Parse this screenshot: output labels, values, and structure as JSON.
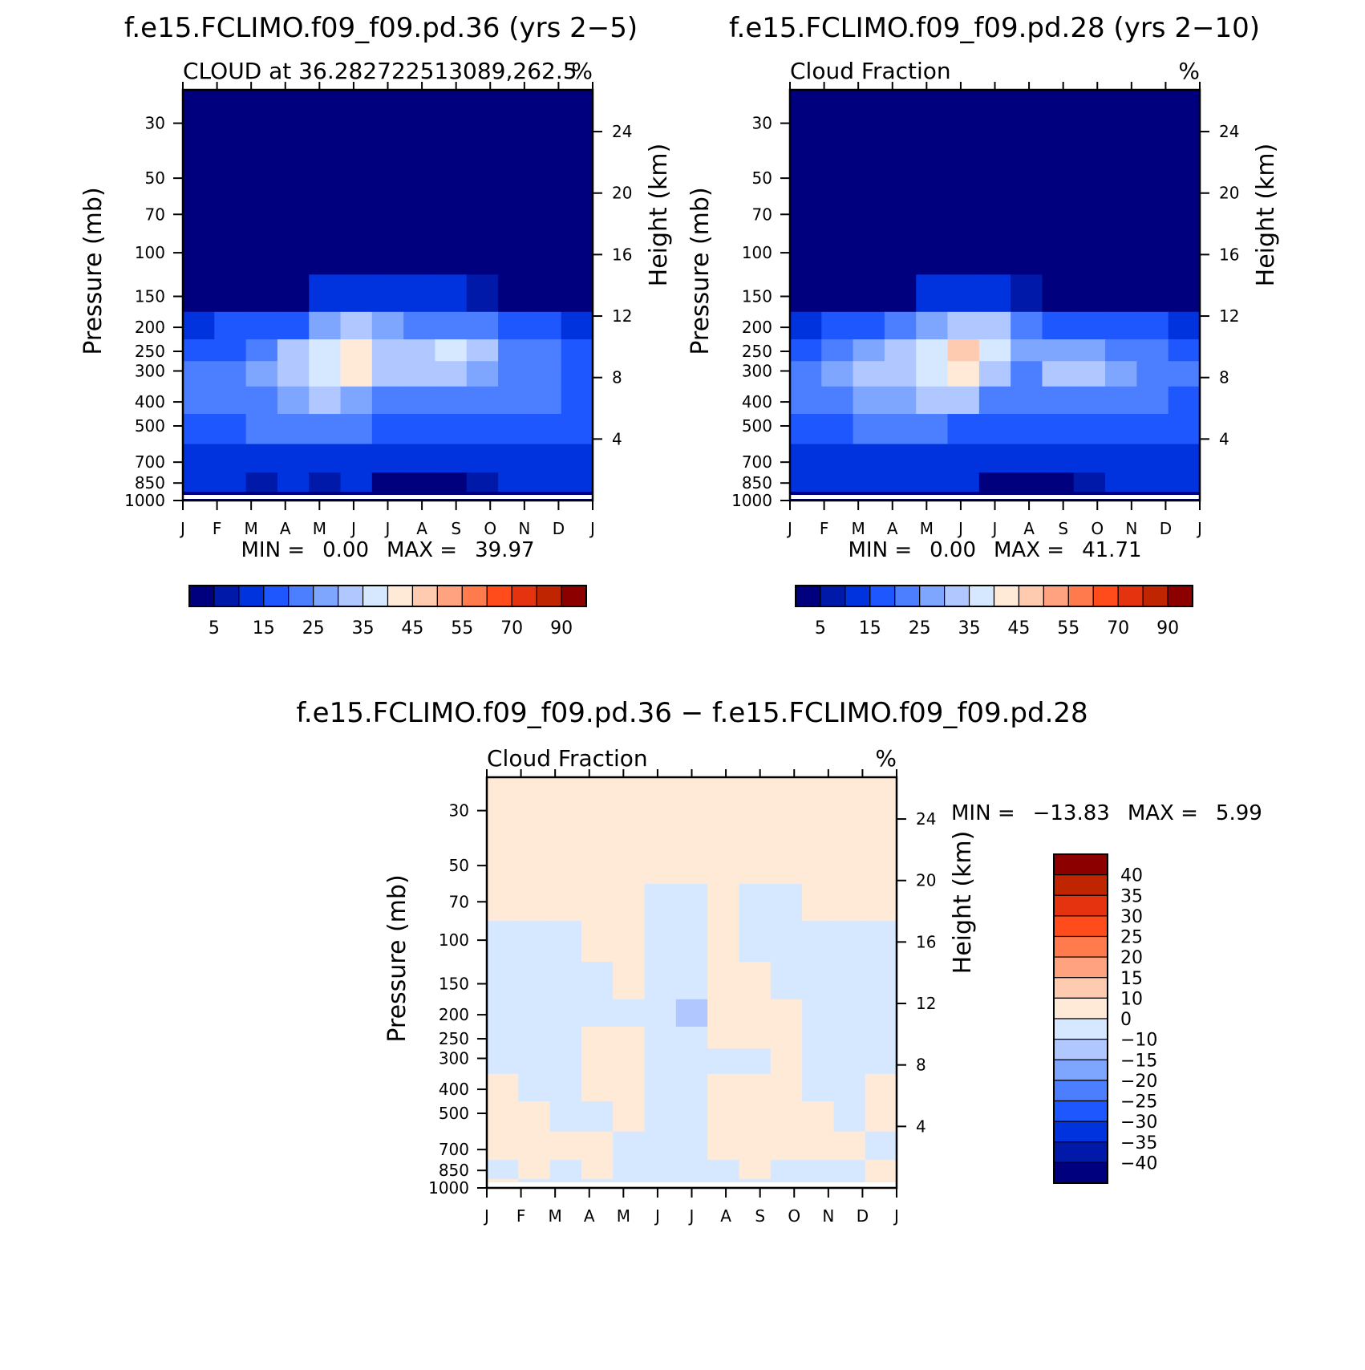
{
  "figure": {
    "bg_color": "#ffffff",
    "line_color": "#000000"
  },
  "palettes": {
    "cloud": [
      "#00007f",
      "#0019a8",
      "#0033de",
      "#1f57ff",
      "#4c7fff",
      "#7fa6ff",
      "#b0c8ff",
      "#d6e8ff",
      "#ffead8",
      "#ffcbb0",
      "#ffa280",
      "#ff7a4c",
      "#ff4c1a",
      "#e5330f",
      "#bf2500",
      "#8c0000"
    ],
    "diff": [
      "#00007f",
      "#0019a8",
      "#0033de",
      "#1f57ff",
      "#4c7fff",
      "#7fa6ff",
      "#b0c8ff",
      "#d6e8ff",
      "#ffead8",
      "#ffcbb0",
      "#ffa280",
      "#ff7a4c",
      "#ff4c1a",
      "#e5330f",
      "#bf2500",
      "#8c0000"
    ]
  },
  "chart_data": [
    {
      "type": "heatmap",
      "title": "f.e15.FCLIMO.f09_f09.pd.36 (yrs 2−5)",
      "subtitle_left": "CLOUD at 36.282722513089,262.5",
      "subtitle_right": "%",
      "ylabel": "Pressure (mb)",
      "y2label": "Height (km)",
      "x_ticks": [
        "J",
        "F",
        "M",
        "A",
        "M",
        "J",
        "J",
        "A",
        "S",
        "O",
        "N",
        "D",
        "J"
      ],
      "y_ticks": [
        30,
        50,
        70,
        100,
        150,
        200,
        250,
        300,
        400,
        500,
        700,
        850,
        1000
      ],
      "y2_ticks": [
        24,
        20,
        16,
        12,
        8,
        4
      ],
      "stats": {
        "min_label": "MIN =",
        "min": "0.00",
        "max_label": "MAX =",
        "max": "39.97"
      },
      "colorbar": {
        "labels": [
          "5",
          "15",
          "25",
          "35",
          "45",
          "55",
          "70",
          "90"
        ]
      },
      "color_levels": [
        0.8,
        1.0,
        1.8,
        2.5,
        3.5,
        4.2,
        5.2,
        6.2,
        7.5,
        8.5,
        10,
        12,
        15
      ],
      "field": [
        [
          0.5,
          0.5,
          0.5,
          0.5,
          0.5,
          0.5,
          0.5,
          0.5,
          0.5,
          0.5,
          0.5,
          0.5,
          0.5
        ],
        [
          0.5,
          0.5,
          0.5,
          0.5,
          0.5,
          0.5,
          0.5,
          0.5,
          0.5,
          0.5,
          0.5,
          0.5,
          0.5
        ],
        [
          0.5,
          0.5,
          0.5,
          0.5,
          0.5,
          0.5,
          0.5,
          0.5,
          0.5,
          0.5,
          0.5,
          0.5,
          0.5
        ],
        [
          0.5,
          0.5,
          0.5,
          0.5,
          0.5,
          0.5,
          0.5,
          0.5,
          0.5,
          0.5,
          0.5,
          0.5,
          0.5
        ],
        [
          0.5,
          0.5,
          0.5,
          0.5,
          1.2,
          1.5,
          1.2,
          1.0,
          1.1,
          0.9,
          0.6,
          0.5,
          0.5
        ],
        [
          1.2,
          1.8,
          2.0,
          2.4,
          3.6,
          4.5,
          3.5,
          2.6,
          3.0,
          2.6,
          2.0,
          1.8,
          1.2
        ],
        [
          2.0,
          2.4,
          3.0,
          4.4,
          5.8,
          7.0,
          5.0,
          4.6,
          5.4,
          4.2,
          3.0,
          2.5,
          2.0
        ],
        [
          2.8,
          3.0,
          3.8,
          4.8,
          5.6,
          6.8,
          4.8,
          4.4,
          5.0,
          4.0,
          3.2,
          2.8,
          2.4
        ],
        [
          2.6,
          2.8,
          3.2,
          4.0,
          4.6,
          4.0,
          3.4,
          3.2,
          3.2,
          2.8,
          2.6,
          2.6,
          2.2
        ],
        [
          2.2,
          2.2,
          2.5,
          2.8,
          2.8,
          2.6,
          2.2,
          2.2,
          2.0,
          1.9,
          2.1,
          2.0,
          2.0
        ],
        [
          1.6,
          1.6,
          1.6,
          1.6,
          1.6,
          1.5,
          1.2,
          1.3,
          1.5,
          1.6,
          1.6,
          1.6,
          1.6
        ],
        [
          1.4,
          1.2,
          0.9,
          1.1,
          0.9,
          1.1,
          0.5,
          0.5,
          0.5,
          0.9,
          1.1,
          1.3,
          1.4
        ],
        [
          0.6,
          0.6,
          0.6,
          0.6,
          0.6,
          0.6,
          0.5,
          0.5,
          0.5,
          0.6,
          0.6,
          0.6,
          0.6
        ]
      ]
    },
    {
      "type": "heatmap",
      "title": "f.e15.FCLIMO.f09_f09.pd.28 (yrs 2−10)",
      "subtitle_left": "Cloud Fraction",
      "subtitle_right": "%",
      "ylabel": "Pressure (mb)",
      "y2label": "Height (km)",
      "x_ticks": [
        "J",
        "F",
        "M",
        "A",
        "M",
        "J",
        "J",
        "A",
        "S",
        "O",
        "N",
        "D",
        "J"
      ],
      "y_ticks": [
        30,
        50,
        70,
        100,
        150,
        200,
        250,
        300,
        400,
        500,
        700,
        850,
        1000
      ],
      "y2_ticks": [
        24,
        20,
        16,
        12,
        8,
        4
      ],
      "stats": {
        "min_label": "MIN =",
        "min": "0.00",
        "max_label": "MAX =",
        "max": "41.71"
      },
      "colorbar": {
        "labels": [
          "5",
          "15",
          "25",
          "35",
          "45",
          "55",
          "70",
          "90"
        ]
      },
      "color_levels": [
        0.8,
        1.0,
        1.8,
        2.5,
        3.5,
        4.2,
        5.2,
        6.2,
        7.5,
        8.5,
        10,
        12,
        15
      ],
      "field": [
        [
          0.5,
          0.5,
          0.5,
          0.5,
          0.5,
          0.5,
          0.5,
          0.5,
          0.5,
          0.5,
          0.5,
          0.5,
          0.5
        ],
        [
          0.5,
          0.5,
          0.5,
          0.5,
          0.5,
          0.5,
          0.5,
          0.5,
          0.5,
          0.5,
          0.5,
          0.5,
          0.5
        ],
        [
          0.5,
          0.5,
          0.5,
          0.5,
          0.5,
          0.5,
          0.5,
          0.5,
          0.5,
          0.5,
          0.5,
          0.5,
          0.5
        ],
        [
          0.5,
          0.5,
          0.5,
          0.5,
          0.5,
          0.5,
          0.5,
          0.5,
          0.5,
          0.5,
          0.5,
          0.5,
          0.5
        ],
        [
          0.5,
          0.5,
          0.6,
          0.6,
          1.2,
          1.4,
          1.5,
          0.8,
          0.6,
          0.6,
          0.5,
          0.5,
          0.5
        ],
        [
          1.4,
          2.0,
          2.2,
          2.6,
          3.8,
          4.8,
          4.2,
          2.6,
          2.2,
          2.0,
          1.8,
          1.8,
          1.4
        ],
        [
          2.2,
          3.0,
          3.8,
          4.8,
          5.6,
          7.8,
          5.6,
          3.6,
          4.0,
          3.8,
          3.0,
          2.6,
          2.2
        ],
        [
          2.8,
          3.6,
          4.8,
          5.0,
          5.4,
          6.6,
          4.6,
          3.4,
          4.2,
          4.2,
          3.6,
          2.8,
          2.6
        ],
        [
          2.6,
          3.4,
          3.6,
          4.0,
          4.4,
          4.2,
          2.6,
          2.8,
          3.4,
          3.2,
          2.8,
          2.6,
          2.4
        ],
        [
          2.2,
          2.2,
          2.6,
          2.8,
          2.8,
          2.4,
          2.0,
          2.2,
          2.2,
          2.1,
          2.0,
          2.0,
          2.0
        ],
        [
          1.6,
          1.5,
          1.6,
          1.6,
          1.6,
          1.6,
          1.2,
          1.2,
          1.3,
          1.4,
          1.5,
          1.6,
          1.6
        ],
        [
          1.3,
          1.2,
          1.2,
          1.1,
          1.2,
          1.1,
          0.5,
          0.5,
          0.6,
          0.8,
          1.1,
          1.3,
          1.3
        ],
        [
          0.6,
          0.6,
          0.6,
          0.6,
          0.6,
          0.6,
          0.5,
          0.5,
          0.5,
          0.6,
          0.6,
          0.6,
          0.6
        ]
      ]
    },
    {
      "type": "heatmap",
      "title": "f.e15.FCLIMO.f09_f09.pd.36 − f.e15.FCLIMO.f09_f09.pd.28",
      "subtitle_left": "Cloud Fraction",
      "subtitle_right": "%",
      "ylabel": "Pressure (mb)",
      "y2label": "Height (km)",
      "x_ticks": [
        "J",
        "F",
        "M",
        "A",
        "M",
        "J",
        "J",
        "A",
        "S",
        "O",
        "N",
        "D",
        "J"
      ],
      "y_ticks": [
        30,
        50,
        70,
        100,
        150,
        200,
        250,
        300,
        400,
        500,
        700,
        850,
        1000
      ],
      "y2_ticks": [
        24,
        20,
        16,
        12,
        8,
        4
      ],
      "stats": {
        "min_label": "MIN =",
        "min": "−13.83",
        "max_label": "MAX =",
        "max": "5.99"
      },
      "colorbar": {
        "labels": [
          "40",
          "35",
          "30",
          "25",
          "20",
          "15",
          "10",
          "0",
          "−10",
          "−15",
          "−20",
          "−25",
          "−30",
          "−35",
          "−40"
        ]
      },
      "color_levels": [
        -40,
        -35,
        -30,
        -25,
        -20,
        -15,
        -10,
        0,
        10,
        15,
        20,
        25,
        30,
        35,
        40
      ],
      "field": [
        [
          2,
          2,
          2,
          2,
          2,
          2,
          2,
          2,
          2,
          2,
          2,
          2,
          2
        ],
        [
          2,
          2,
          2,
          2,
          2,
          2,
          2,
          2,
          2,
          2,
          2,
          2,
          2
        ],
        [
          2,
          2,
          2,
          2,
          2,
          -2,
          -3,
          2,
          -2,
          -2,
          2,
          2,
          2
        ],
        [
          -3,
          -3,
          -3,
          2,
          2,
          -3,
          -3,
          2,
          -3,
          -3,
          -3,
          -3,
          -3
        ],
        [
          -3,
          -3,
          -3,
          -3,
          2,
          -3,
          -6,
          2,
          2,
          -3,
          -3,
          -3,
          -3
        ],
        [
          -3,
          -3,
          -3,
          -3,
          -3,
          -3,
          -12,
          2,
          2,
          2,
          -3,
          -3,
          -3
        ],
        [
          -3,
          -3,
          -3,
          2,
          2,
          -3,
          -3,
          2,
          2,
          2,
          -3,
          -3,
          -3
        ],
        [
          -3,
          -3,
          -3,
          2,
          2,
          -3,
          -3,
          -3,
          -3,
          2,
          -3,
          -3,
          -3
        ],
        [
          2,
          -3,
          -3,
          2,
          2,
          -3,
          -3,
          2,
          2,
          2,
          -3,
          -3,
          2
        ],
        [
          2,
          2,
          -3,
          -3,
          2,
          -3,
          -3,
          2,
          2,
          2,
          2,
          -3,
          2
        ],
        [
          2,
          2,
          2,
          2,
          -3,
          -3,
          -3,
          2,
          2,
          2,
          2,
          2,
          -3
        ],
        [
          -3,
          2,
          -3,
          2,
          -3,
          -3,
          -3,
          -3,
          2,
          -3,
          -3,
          -3,
          2
        ],
        [
          2,
          -3,
          -3,
          -3,
          -3,
          -3,
          -3,
          -3,
          -3,
          -3,
          -3,
          -3,
          2
        ]
      ]
    }
  ]
}
